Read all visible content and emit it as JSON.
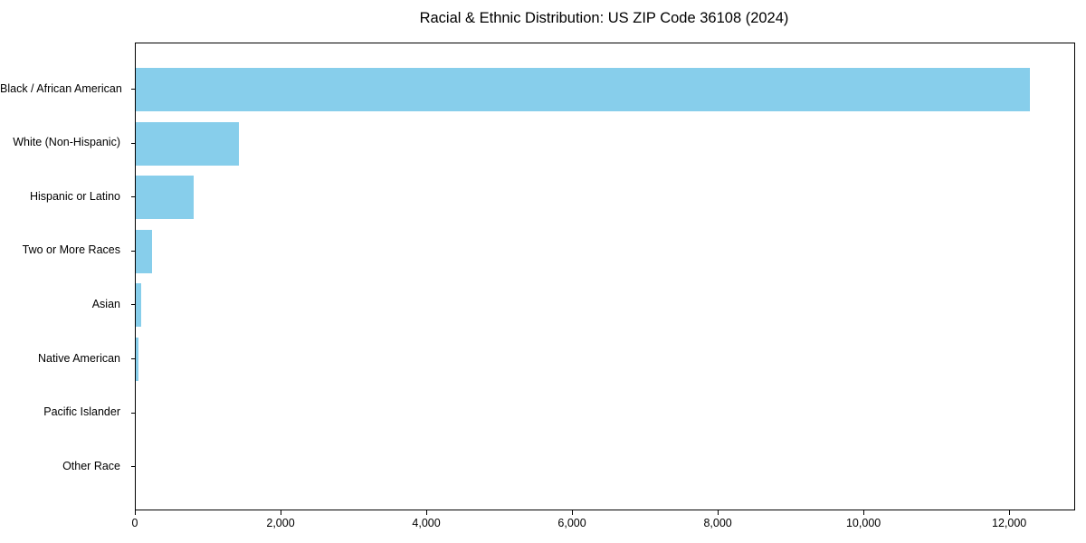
{
  "chart_data": {
    "type": "bar",
    "orientation": "horizontal",
    "title": "Racial & Ethnic Distribution: US ZIP Code 36108 (2024)",
    "categories": [
      "Black / African American",
      "White (Non-Hispanic)",
      "Hispanic or Latino",
      "Two or More Races",
      "Asian",
      "Native American",
      "Pacific Islander",
      "Other Race"
    ],
    "values": [
      12270,
      1420,
      795,
      225,
      70,
      35,
      0,
      0
    ],
    "xlabel": "",
    "ylabel": "",
    "xlim": [
      0,
      12880
    ],
    "x_ticks": [
      0,
      2000,
      4000,
      6000,
      8000,
      10000,
      12000
    ],
    "x_tick_labels": [
      "0",
      "2,000",
      "4,000",
      "6,000",
      "8,000",
      "10,000",
      "12,000"
    ],
    "bar_color": "#87CEEB",
    "frame_color": "#000000",
    "text_color": "#000000",
    "grid": false,
    "legend": null
  }
}
